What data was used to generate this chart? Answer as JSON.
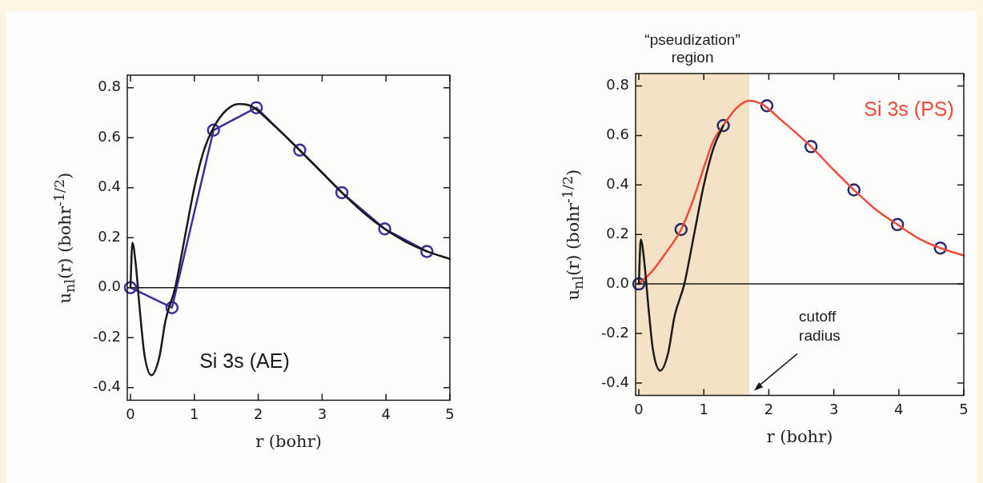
{
  "chart_data": [
    {
      "type": "line",
      "xlabel": "r (bohr)",
      "ylabel": "u$_{nl}$(r) (bohr$^{-1/2}$)",
      "xlim": [
        -0.05,
        5
      ],
      "ylim": [
        -0.45,
        0.85
      ],
      "xticks": [
        0,
        1,
        2,
        3,
        4,
        5
      ],
      "yticks": [
        -0.4,
        -0.2,
        {
          "value": 0,
          "label": "0.0"
        },
        0.2,
        0.4,
        0.6,
        0.8
      ],
      "grid": false,
      "legend": false,
      "ref_lines": [
        {
          "axis": "y",
          "value": 0,
          "color": "#1a1a1a"
        }
      ],
      "series": [
        {
          "name": "Si 3s (AE)",
          "color": "#1a1a1a",
          "marker": "none",
          "x": [
            0,
            0.03,
            0.08,
            0.15,
            0.22,
            0.33,
            0.45,
            0.55,
            0.7,
            0.85,
            1.0,
            1.15,
            1.3,
            1.5,
            1.7,
            1.9,
            2.2,
            2.65,
            3.0,
            3.31,
            3.65,
            3.98,
            4.3,
            4.64,
            5
          ],
          "values": [
            0,
            0.18,
            0.1,
            -0.1,
            -0.27,
            -0.35,
            -0.28,
            -0.13,
            0,
            0.2,
            0.4,
            0.55,
            0.64,
            0.71,
            0.735,
            0.725,
            0.66,
            0.55,
            0.46,
            0.38,
            0.3,
            0.235,
            0.185,
            0.145,
            0.115
          ]
        },
        {
          "color": "#3b2f9c",
          "marker": "circle",
          "x": [
            0,
            0.65,
            1.3,
            1.97,
            2.65,
            3.31,
            3.98,
            4.64
          ],
          "values": [
            0,
            -0.08,
            0.63,
            0.72,
            0.55,
            0.38,
            0.235,
            0.145
          ]
        }
      ]
    },
    {
      "type": "line",
      "xlabel": "r (bohr)",
      "ylabel": "u$_{nl}$(r) (bohr$^{-1/2}$)",
      "xlim": [
        -0.05,
        5
      ],
      "ylim": [
        -0.45,
        0.85
      ],
      "xticks": [
        0,
        1,
        2,
        3,
        4,
        5
      ],
      "yticks": [
        -0.4,
        -0.2,
        {
          "value": 0,
          "label": "0.0"
        },
        0.2,
        0.4,
        0.6,
        0.8
      ],
      "grid": false,
      "legend": false,
      "ref_lines": [
        {
          "axis": "y",
          "value": 0,
          "color": "#1a1a1a"
        }
      ],
      "bands": [
        {
          "axis": "x",
          "from": -0.05,
          "to": 1.7,
          "label": "“pseudization”\nregion",
          "color": "#f3e2c6"
        }
      ],
      "annotations": [
        "cutoff\nradius"
      ],
      "series": [
        {
          "color": "#1a1a1a",
          "marker": "none",
          "x": [
            0,
            0.03,
            0.08,
            0.15,
            0.22,
            0.33,
            0.45,
            0.55,
            0.7,
            0.85,
            1.0,
            1.15,
            1.3
          ],
          "values": [
            0,
            0.18,
            0.1,
            -0.1,
            -0.27,
            -0.35,
            -0.28,
            -0.13,
            0,
            0.2,
            0.4,
            0.55,
            0.64
          ]
        },
        {
          "name": "Si 3s (PS)",
          "color": "#f04a3a",
          "marker": "none",
          "x": [
            0,
            0.2,
            0.4,
            0.65,
            0.85,
            1.0,
            1.15,
            1.3,
            1.5,
            1.7,
            1.9,
            2.2,
            2.65,
            3.0,
            3.31,
            3.65,
            3.98,
            4.3,
            4.64,
            5
          ],
          "values": [
            0,
            0.05,
            0.12,
            0.22,
            0.35,
            0.47,
            0.58,
            0.64,
            0.71,
            0.74,
            0.725,
            0.66,
            0.555,
            0.46,
            0.38,
            0.3,
            0.24,
            0.185,
            0.145,
            0.115
          ]
        },
        {
          "color": "#2a2a6a",
          "type": "scatter",
          "marker": "circle",
          "x": [
            0,
            0.65,
            1.3,
            1.97,
            2.65,
            3.31,
            3.98,
            4.64
          ],
          "values": [
            0,
            0.22,
            0.64,
            0.72,
            0.555,
            0.38,
            0.24,
            0.145
          ]
        }
      ]
    }
  ]
}
